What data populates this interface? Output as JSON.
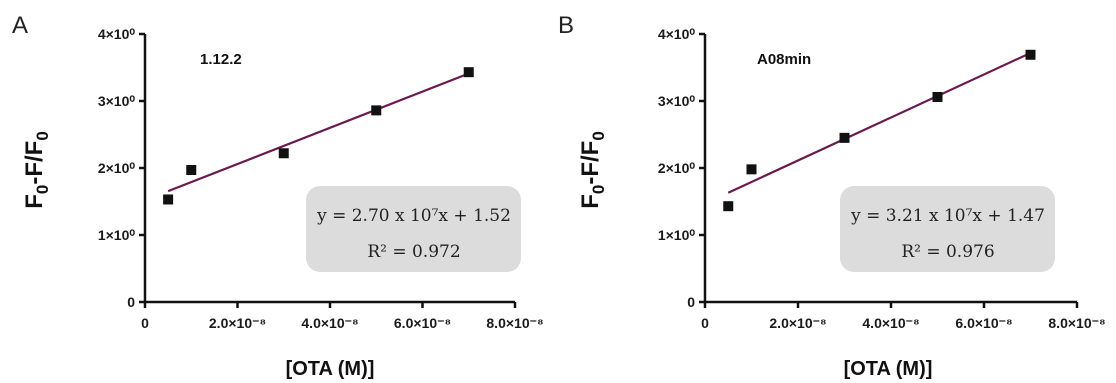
{
  "colors": {
    "fit_line": "#6b1a4f",
    "marker": "#111111",
    "axis": "#111111",
    "box_fill": "#dcdcdc"
  },
  "chart_data": [
    {
      "type": "scatter",
      "panel_letter": "A",
      "inset_label": "1.12.2",
      "xlabel": "[OTA (M)]",
      "ylabel": "F0-F/F0",
      "xlim": [
        0,
        8e-08
      ],
      "ylim": [
        0,
        4
      ],
      "x_ticks": [
        "0",
        "2.0×10⁻⁸",
        "4.0×10⁻⁸",
        "6.0×10⁻⁸",
        "8.0×10⁻⁸"
      ],
      "y_ticks": [
        "0",
        "1×10⁰",
        "2×10⁰",
        "3×10⁰",
        "4×10⁰"
      ],
      "x": [
        5e-09,
        1e-08,
        3e-08,
        5e-08,
        7e-08
      ],
      "y": [
        1.53,
        1.97,
        2.22,
        2.86,
        3.43
      ],
      "fit": {
        "slope": 27000000.0,
        "intercept": 1.52
      },
      "equation": "y = 2.70 x 10⁷x + 1.52",
      "r_squared": "R² = 0.972",
      "grid": false
    },
    {
      "type": "scatter",
      "panel_letter": "B",
      "inset_label": "A08min",
      "xlabel": "[OTA (M)]",
      "ylabel": "F0-F/F0",
      "xlim": [
        0,
        8e-08
      ],
      "ylim": [
        0,
        4
      ],
      "x_ticks": [
        "0",
        "2.0×10⁻⁸",
        "4.0×10⁻⁸",
        "6.0×10⁻⁸",
        "8.0×10⁻⁸"
      ],
      "y_ticks": [
        "0",
        "1×10⁰",
        "2×10⁰",
        "3×10⁰",
        "4×10⁰"
      ],
      "x": [
        5e-09,
        1e-08,
        3e-08,
        5e-08,
        7e-08
      ],
      "y": [
        1.43,
        1.98,
        2.45,
        3.06,
        3.69
      ],
      "fit": {
        "slope": 32100000.0,
        "intercept": 1.47
      },
      "equation": "y = 3.21 x 10⁷x + 1.47",
      "r_squared": "R² = 0.976",
      "grid": false
    }
  ]
}
